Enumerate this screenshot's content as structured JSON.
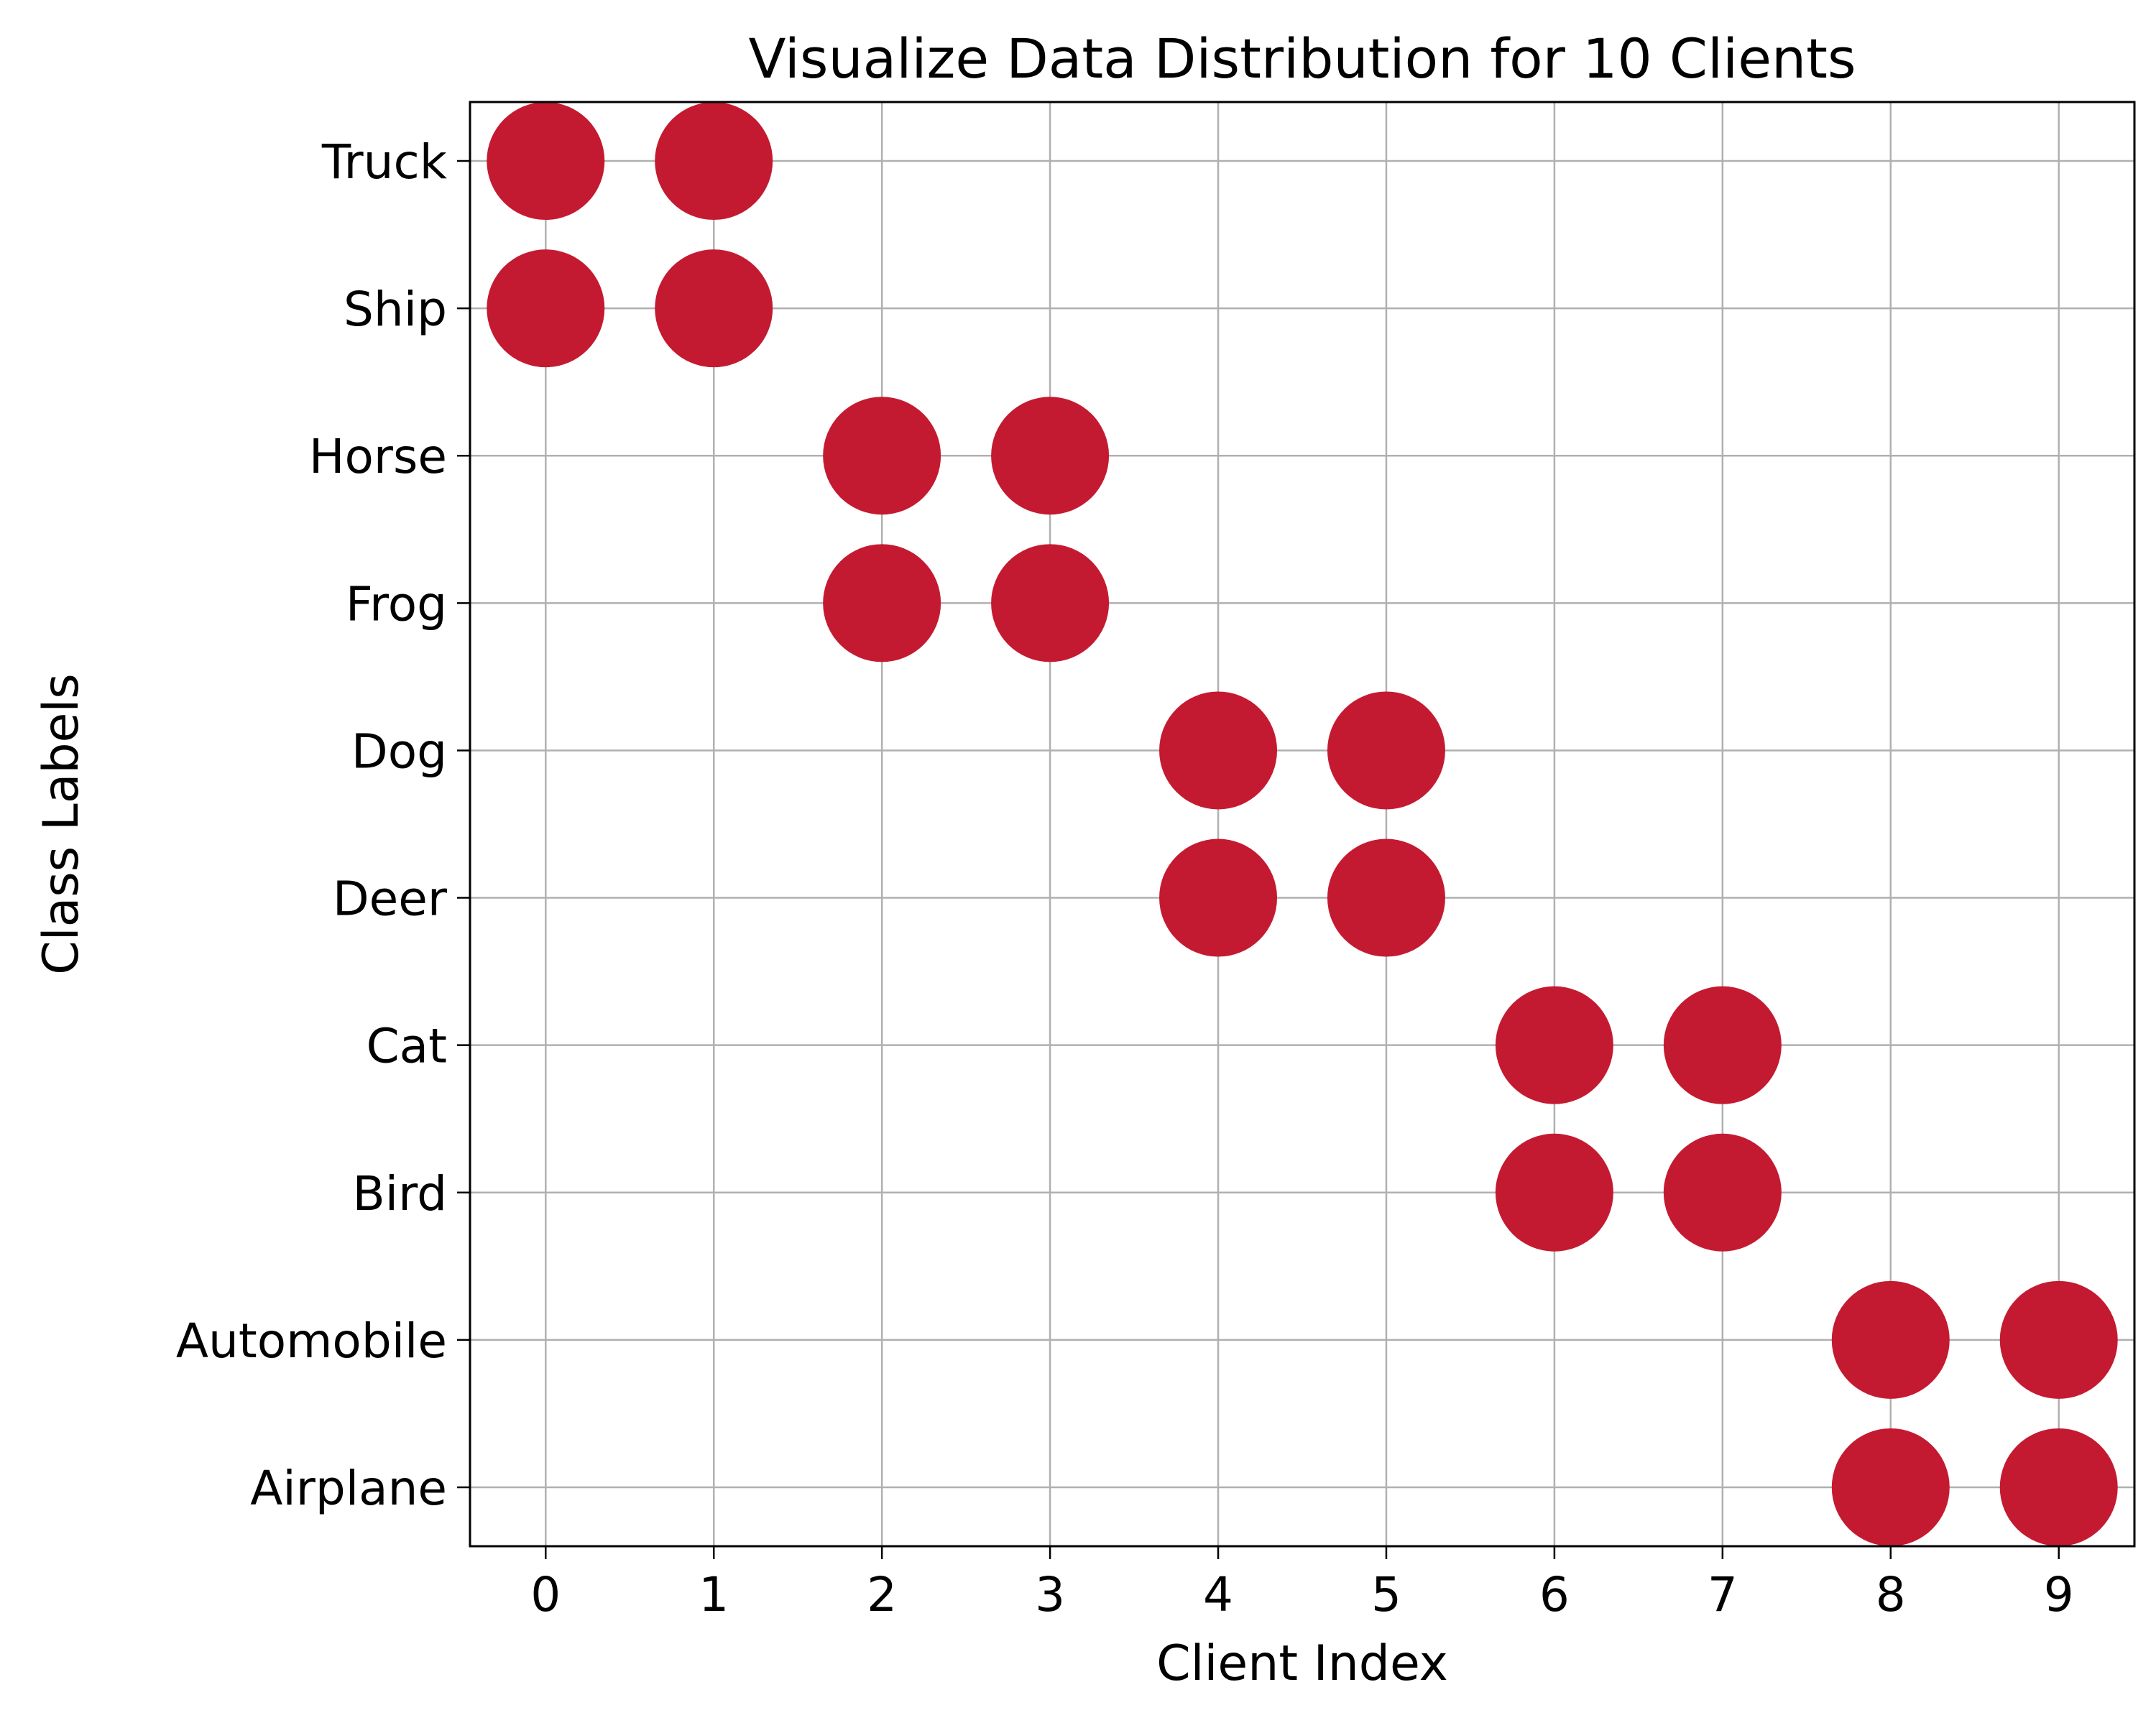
{
  "chart_data": {
    "type": "scatter",
    "title": "Visualize Data Distribution for 10 Clients",
    "xlabel": "Client Index",
    "ylabel": "Class Labels",
    "x_ticks": [
      "0",
      "1",
      "2",
      "3",
      "4",
      "5",
      "6",
      "7",
      "8",
      "9"
    ],
    "categories": [
      "Airplane",
      "Automobile",
      "Bird",
      "Cat",
      "Deer",
      "Dog",
      "Frog",
      "Horse",
      "Ship",
      "Truck"
    ],
    "xlim": [
      -0.45,
      9.45
    ],
    "grid": true,
    "marker_color": "#c41a31",
    "points": [
      {
        "x": 0,
        "y": "Truck"
      },
      {
        "x": 0,
        "y": "Ship"
      },
      {
        "x": 1,
        "y": "Truck"
      },
      {
        "x": 1,
        "y": "Ship"
      },
      {
        "x": 2,
        "y": "Horse"
      },
      {
        "x": 2,
        "y": "Frog"
      },
      {
        "x": 3,
        "y": "Horse"
      },
      {
        "x": 3,
        "y": "Frog"
      },
      {
        "x": 4,
        "y": "Dog"
      },
      {
        "x": 4,
        "y": "Deer"
      },
      {
        "x": 5,
        "y": "Dog"
      },
      {
        "x": 5,
        "y": "Deer"
      },
      {
        "x": 6,
        "y": "Cat"
      },
      {
        "x": 6,
        "y": "Bird"
      },
      {
        "x": 7,
        "y": "Cat"
      },
      {
        "x": 7,
        "y": "Bird"
      },
      {
        "x": 8,
        "y": "Automobile"
      },
      {
        "x": 8,
        "y": "Airplane"
      },
      {
        "x": 9,
        "y": "Automobile"
      },
      {
        "x": 9,
        "y": "Airplane"
      }
    ]
  }
}
